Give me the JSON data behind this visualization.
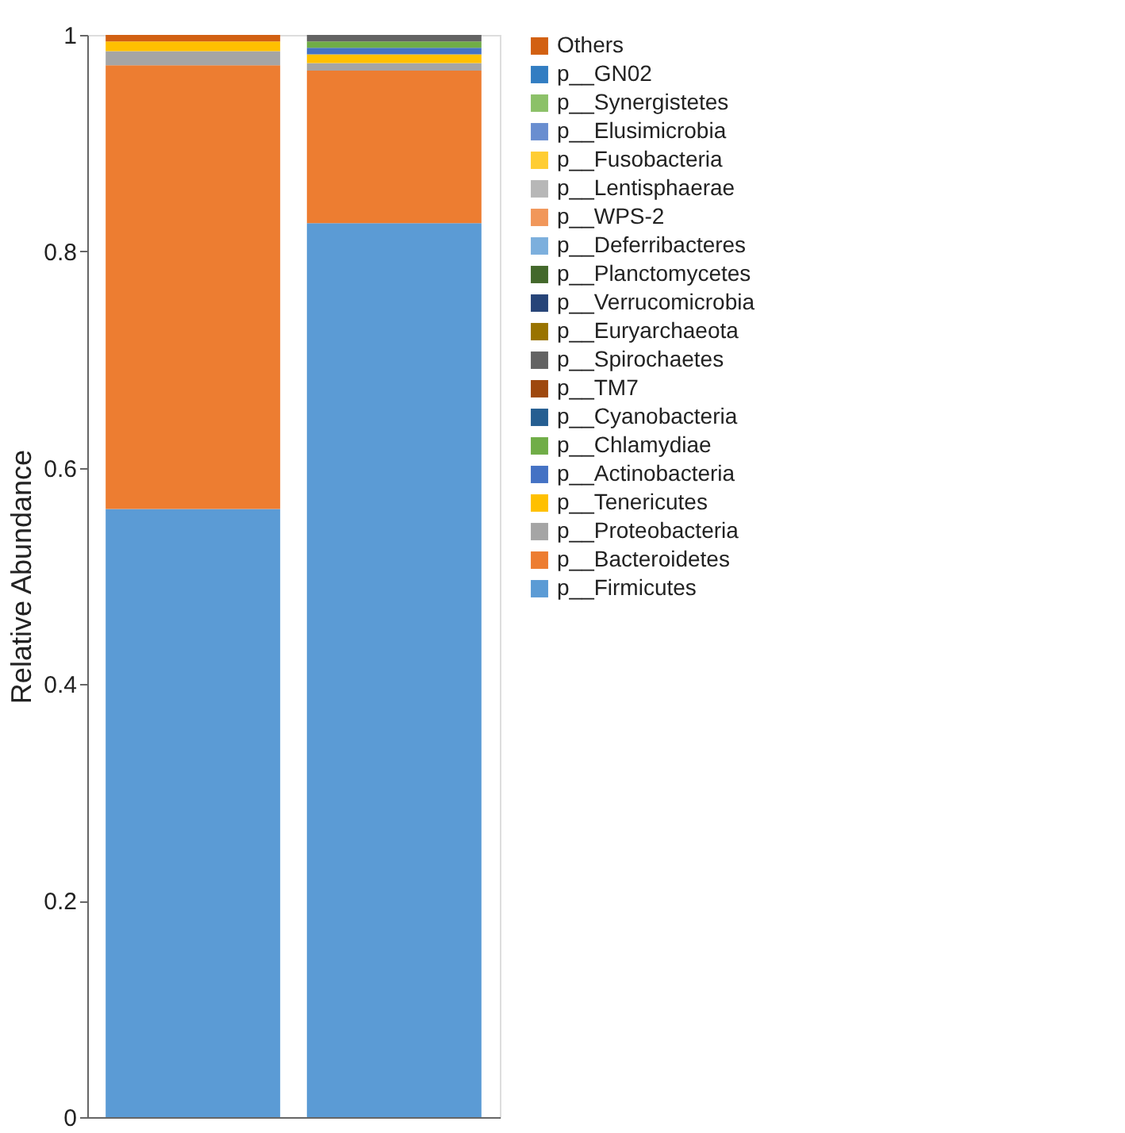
{
  "chart_data": {
    "type": "bar",
    "stacked": true,
    "ylabel": "Relative Abundance",
    "categories": [
      null,
      null
    ],
    "ylim": [
      0,
      1
    ],
    "yticks": [
      0,
      0.2,
      0.4,
      0.6,
      0.8,
      1
    ],
    "grid": false,
    "legend": "right",
    "tick_labels": "y",
    "series": [
      {
        "name": "p__Firmicutes",
        "color": "#5b9bd5",
        "values": [
          0.562,
          0.826
        ]
      },
      {
        "name": "p__Bacteroidetes",
        "color": "#ed7d31",
        "values": [
          0.41,
          0.141
        ]
      },
      {
        "name": "p__Proteobacteria",
        "color": "#a5a5a5",
        "values": [
          0.013,
          0.007
        ]
      },
      {
        "name": "p__Tenericutes",
        "color": "#ffc000",
        "values": [
          0.009,
          0.008
        ]
      },
      {
        "name": "p__Actinobacteria",
        "color": "#4472c4",
        "values": [
          0,
          0.006
        ]
      },
      {
        "name": "p__Chlamydiae",
        "color": "#70ad47",
        "values": [
          0,
          0.006
        ]
      },
      {
        "name": "p__Cyanobacteria",
        "color": "#255e91",
        "values": [
          0,
          0
        ]
      },
      {
        "name": "p__TM7",
        "color": "#9e480e",
        "values": [
          0,
          0
        ]
      },
      {
        "name": "p__Spirochaetes",
        "color": "#636363",
        "values": [
          0,
          0.006
        ]
      },
      {
        "name": "p__Euryarchaeota",
        "color": "#997300",
        "values": [
          0,
          0
        ]
      },
      {
        "name": "p__Verrucomicrobia",
        "color": "#264478",
        "values": [
          0,
          0
        ]
      },
      {
        "name": "p__Planctomycetes",
        "color": "#43682b",
        "values": [
          0,
          0
        ]
      },
      {
        "name": "p__Deferribacteres",
        "color": "#7cafdd",
        "values": [
          0,
          0
        ]
      },
      {
        "name": "p__WPS-2",
        "color": "#f1975a",
        "values": [
          0,
          0
        ]
      },
      {
        "name": "p__Lentisphaerae",
        "color": "#b7b7b7",
        "values": [
          0,
          0
        ]
      },
      {
        "name": "p__Fusobacteria",
        "color": "#ffcd33",
        "values": [
          0,
          0
        ]
      },
      {
        "name": "p__Elusimicrobia",
        "color": "#698ed0",
        "values": [
          0,
          0
        ]
      },
      {
        "name": "p__Synergistetes",
        "color": "#8cc168",
        "values": [
          0,
          0
        ]
      },
      {
        "name": "p__GN02",
        "color": "#327dc2",
        "values": [
          0,
          0
        ]
      },
      {
        "name": "Others",
        "color": "#d26012",
        "values": [
          0.006,
          0
        ]
      }
    ]
  }
}
